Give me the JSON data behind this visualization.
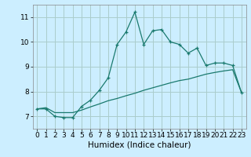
{
  "title": "",
  "xlabel": "Humidex (Indice chaleur)",
  "background_color": "#cceeff",
  "grid_color": "#aacccc",
  "line_color": "#1a7a6e",
  "x_values": [
    0,
    1,
    2,
    3,
    4,
    5,
    6,
    7,
    8,
    9,
    10,
    11,
    12,
    13,
    14,
    15,
    16,
    17,
    18,
    19,
    20,
    21,
    22,
    23
  ],
  "line1_y": [
    7.3,
    7.3,
    7.0,
    6.95,
    6.95,
    7.4,
    7.65,
    8.05,
    8.55,
    9.9,
    10.4,
    11.2,
    9.9,
    10.45,
    10.5,
    10.0,
    9.9,
    9.55,
    9.75,
    9.05,
    9.15,
    9.15,
    9.05,
    7.95
  ],
  "line2_y": [
    7.3,
    7.35,
    7.15,
    7.15,
    7.15,
    7.25,
    7.38,
    7.5,
    7.63,
    7.72,
    7.83,
    7.93,
    8.05,
    8.15,
    8.25,
    8.35,
    8.44,
    8.5,
    8.6,
    8.7,
    8.77,
    8.83,
    8.88,
    7.95
  ],
  "ylim": [
    6.5,
    11.5
  ],
  "xlim": [
    -0.5,
    23.5
  ],
  "yticks": [
    7,
    8,
    9,
    10,
    11
  ],
  "xticks": [
    0,
    1,
    2,
    3,
    4,
    5,
    6,
    7,
    8,
    9,
    10,
    11,
    12,
    13,
    14,
    15,
    16,
    17,
    18,
    19,
    20,
    21,
    22,
    23
  ],
  "tick_fontsize": 6.5,
  "label_fontsize": 7.5
}
